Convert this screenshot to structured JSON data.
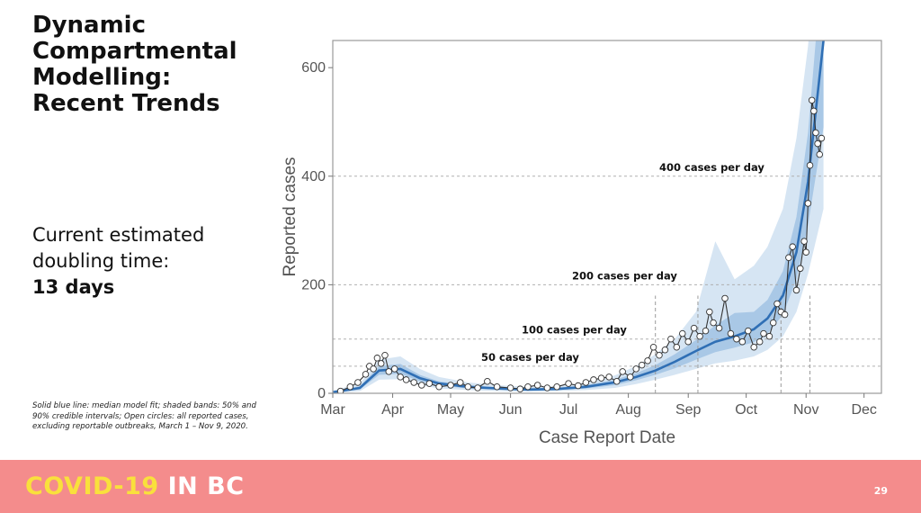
{
  "slide": {
    "title_lines": [
      "Dynamic",
      "Compartmental",
      "Modelling:",
      "Recent Trends"
    ],
    "doubling_lines": [
      "Current estimated",
      "doubling time:"
    ],
    "doubling_value": "13 days",
    "note": "Solid blue line: median model fit; shaded bands: 50% and 90% credible intervals; Open circles: all reported cases, excluding reportable outbreaks, March 1 – Nov 9, 2020.",
    "brand_part1": "COVID-19",
    "brand_part2": "IN BC",
    "page_number": "29"
  },
  "colors": {
    "median_line": "#2f6fb5",
    "band_50": "#a9c8e6",
    "band_90": "#d6e5f3",
    "observed_line": "#333333",
    "footer": "#f48c8c",
    "brand_yellow": "#f9e03c"
  },
  "chart_data": {
    "type": "line",
    "title": "",
    "xlabel": "Case Report Date",
    "ylabel": "Reported cases",
    "x_start_date": "2020-03-01",
    "x_tick_labels": [
      "Mar",
      "Apr",
      "May",
      "Jun",
      "Jul",
      "Aug",
      "Sep",
      "Oct",
      "Nov",
      "Dec"
    ],
    "x_tick_dates": [
      "2020-03-01",
      "2020-04-01",
      "2020-05-01",
      "2020-06-01",
      "2020-07-01",
      "2020-08-01",
      "2020-09-01",
      "2020-10-01",
      "2020-11-01",
      "2020-12-01"
    ],
    "xlim": [
      "2020-03-01",
      "2020-12-10"
    ],
    "ylim": [
      0,
      650
    ],
    "y_ticks": [
      0,
      200,
      400,
      600
    ],
    "reference_lines": [
      {
        "value": 50,
        "label": "50 cases per day"
      },
      {
        "value": 100,
        "label": "100 cases per day"
      },
      {
        "value": 200,
        "label": "200 cases per day"
      },
      {
        "value": 400,
        "label": "400 cases per day"
      }
    ],
    "event_dates": [
      "2020-08-15",
      "2020-09-06",
      "2020-10-19",
      "2020-11-03"
    ],
    "series": [
      {
        "name": "Median model fit",
        "x": [
          "2020-03-01",
          "2020-03-15",
          "2020-03-25",
          "2020-04-05",
          "2020-04-15",
          "2020-04-25",
          "2020-05-10",
          "2020-05-25",
          "2020-06-10",
          "2020-06-25",
          "2020-07-10",
          "2020-07-25",
          "2020-08-05",
          "2020-08-15",
          "2020-08-25",
          "2020-09-05",
          "2020-09-15",
          "2020-09-25",
          "2020-10-05",
          "2020-10-12",
          "2020-10-20",
          "2020-10-27",
          "2020-11-02",
          "2020-11-06",
          "2020-11-10"
        ],
        "median": [
          2,
          10,
          42,
          45,
          28,
          18,
          12,
          9,
          7,
          8,
          12,
          20,
          30,
          42,
          58,
          78,
          95,
          105,
          118,
          138,
          180,
          260,
          390,
          520,
          650
        ],
        "lo50": [
          1,
          7,
          34,
          36,
          22,
          14,
          9,
          7,
          5,
          6,
          9,
          15,
          24,
          34,
          46,
          62,
          76,
          84,
          94,
          110,
          145,
          210,
          310,
          400,
          490
        ],
        "hi50": [
          3,
          13,
          50,
          54,
          34,
          22,
          15,
          11,
          9,
          10,
          15,
          25,
          37,
          52,
          72,
          98,
          125,
          148,
          150,
          172,
          225,
          325,
          480,
          650,
          800
        ],
        "lo90": [
          0,
          4,
          25,
          26,
          15,
          9,
          6,
          4,
          3,
          4,
          6,
          10,
          17,
          25,
          34,
          45,
          55,
          60,
          68,
          80,
          105,
          150,
          220,
          280,
          340
        ],
        "hi90": [
          5,
          18,
          62,
          68,
          45,
          30,
          20,
          15,
          12,
          13,
          20,
          33,
          50,
          72,
          100,
          150,
          280,
          210,
          235,
          270,
          340,
          470,
          640,
          820,
          1000
        ]
      },
      {
        "name": "Reported cases",
        "x": [
          "2020-03-05",
          "2020-03-10",
          "2020-03-14",
          "2020-03-18",
          "2020-03-20",
          "2020-03-22",
          "2020-03-24",
          "2020-03-26",
          "2020-03-28",
          "2020-03-30",
          "2020-04-02",
          "2020-04-05",
          "2020-04-08",
          "2020-04-12",
          "2020-04-16",
          "2020-04-20",
          "2020-04-25",
          "2020-05-01",
          "2020-05-06",
          "2020-05-10",
          "2020-05-15",
          "2020-05-20",
          "2020-05-25",
          "2020-06-01",
          "2020-06-06",
          "2020-06-10",
          "2020-06-15",
          "2020-06-20",
          "2020-06-25",
          "2020-07-01",
          "2020-07-06",
          "2020-07-10",
          "2020-07-14",
          "2020-07-18",
          "2020-07-22",
          "2020-07-26",
          "2020-07-29",
          "2020-08-02",
          "2020-08-05",
          "2020-08-08",
          "2020-08-11",
          "2020-08-14",
          "2020-08-17",
          "2020-08-20",
          "2020-08-23",
          "2020-08-26",
          "2020-08-29",
          "2020-09-01",
          "2020-09-04",
          "2020-09-07",
          "2020-09-10",
          "2020-09-12",
          "2020-09-14",
          "2020-09-17",
          "2020-09-20",
          "2020-09-23",
          "2020-09-26",
          "2020-09-29",
          "2020-10-02",
          "2020-10-05",
          "2020-10-08",
          "2020-10-10",
          "2020-10-13",
          "2020-10-15",
          "2020-10-17",
          "2020-10-19",
          "2020-10-21",
          "2020-10-23",
          "2020-10-25",
          "2020-10-27",
          "2020-10-29",
          "2020-10-31",
          "2020-11-01",
          "2020-11-02",
          "2020-11-03",
          "2020-11-04",
          "2020-11-05",
          "2020-11-06",
          "2020-11-07",
          "2020-11-08",
          "2020-11-09"
        ],
        "values": [
          4,
          12,
          20,
          35,
          50,
          45,
          65,
          55,
          70,
          40,
          45,
          30,
          25,
          20,
          15,
          18,
          12,
          15,
          20,
          12,
          10,
          22,
          12,
          10,
          8,
          12,
          15,
          10,
          12,
          18,
          14,
          20,
          25,
          28,
          30,
          22,
          40,
          30,
          45,
          52,
          60,
          85,
          70,
          80,
          100,
          85,
          110,
          95,
          120,
          105,
          115,
          150,
          130,
          120,
          175,
          110,
          100,
          95,
          115,
          85,
          95,
          110,
          105,
          130,
          165,
          150,
          145,
          250,
          270,
          190,
          230,
          280,
          260,
          350,
          420,
          540,
          520,
          480,
          460,
          440,
          470
        ]
      }
    ]
  }
}
